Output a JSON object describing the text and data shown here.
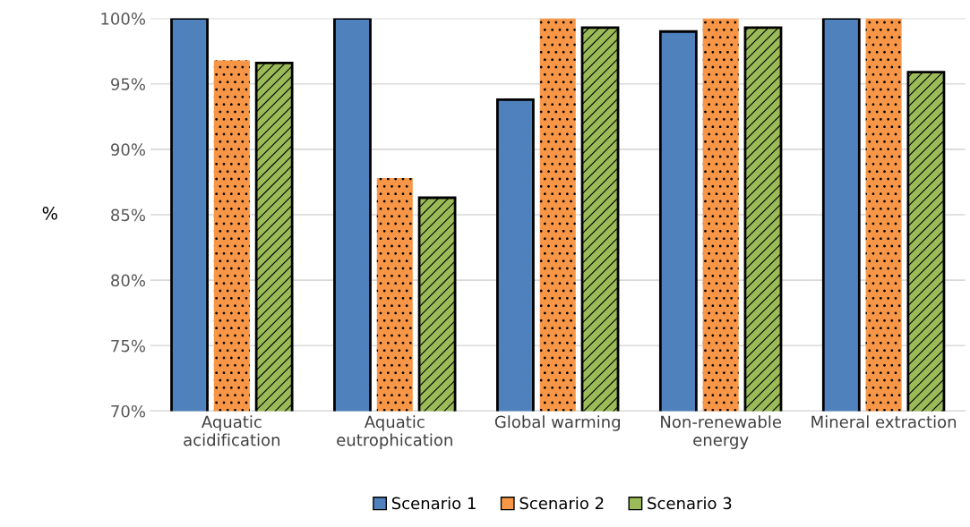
{
  "chart_data": {
    "type": "bar",
    "ylabel": "%",
    "categories": [
      "Aquatic\nacidification",
      "Aquatic\neutrophication",
      "Global warming",
      "Non-renewable\nenergy",
      "Mineral extraction"
    ],
    "series": [
      {
        "name": "Scenario 1",
        "color": "#4f81bd",
        "values": [
          100,
          100,
          93.8,
          99.0,
          100
        ]
      },
      {
        "name": "Scenario 2",
        "color": "#f79646",
        "values": [
          96.8,
          87.8,
          100,
          100,
          100
        ]
      },
      {
        "name": "Scenario 3",
        "color": "#9bbb59",
        "values": [
          96.6,
          86.3,
          99.3,
          99.3,
          95.9
        ]
      }
    ],
    "ylim": [
      70,
      100
    ],
    "yticks": [
      {
        "value": 70,
        "label": "70%"
      },
      {
        "value": 75,
        "label": "75%"
      },
      {
        "value": 80,
        "label": "80%"
      },
      {
        "value": 85,
        "label": "85%"
      },
      {
        "value": 90,
        "label": "90%"
      },
      {
        "value": 95,
        "label": "95%"
      },
      {
        "value": 100,
        "label": "100%"
      }
    ],
    "grid": "y",
    "legend": "bottom"
  }
}
